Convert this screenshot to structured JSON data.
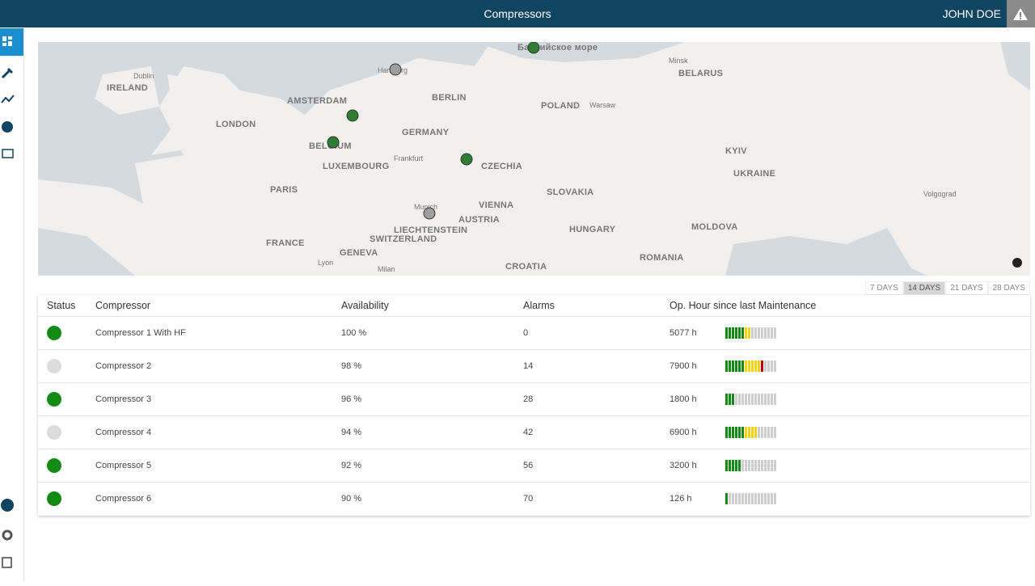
{
  "header": {
    "title": "Compressors",
    "user": "JOHN DOE"
  },
  "map": {
    "labels": [
      "IRELAND",
      "Dublin",
      "AMSTERDAM",
      "LONDON",
      "Hamburg",
      "BERLIN",
      "GERMANY",
      "BELGIUM",
      "LUXEMBOURG",
      "Frankfurt",
      "PARIS",
      "FRANCE",
      "CZECHIA",
      "Munich",
      "AUSTRIA",
      "VIENNA",
      "LIECHTENSTEIN",
      "SWITZERLAND",
      "GENEVA",
      "Lyon",
      "Milan",
      "CROATIA",
      "HUNGARY",
      "SLOVAKIA",
      "POLAND",
      "Warsaw",
      "Minsk",
      "BELARUS",
      "KYIV",
      "UKRAINE",
      "MOLDOVA",
      "ROMANIA",
      "Volgograd",
      "Балтийское море"
    ],
    "markers": [
      {
        "color": "#2e7d32"
      },
      {
        "color": "#9e9e9e"
      },
      {
        "color": "#2e7d32"
      },
      {
        "color": "#2e7d32"
      },
      {
        "color": "#2e7d32"
      },
      {
        "color": "#9e9e9e"
      }
    ]
  },
  "filters": [
    "7 DAYS",
    "14 DAYS",
    "21 DAYS",
    "28 DAYS"
  ],
  "active_filter": "14 DAYS",
  "table": {
    "headers": [
      "Status",
      "Compressor",
      "Availability",
      "Alarms",
      "Op. Hour since last Maintenance"
    ],
    "rows": [
      {
        "status_color": "#138a13",
        "name": "Compressor 1 With HF",
        "availability": "100 %",
        "alarms": "0",
        "hours": "5077 h",
        "bar": {
          "green": 6,
          "yellow": 2,
          "red": 0,
          "gray": 8
        }
      },
      {
        "status_color": "#dcdcdc",
        "name": "Compressor 2",
        "availability": "98 %",
        "alarms": "14",
        "hours": "7900 h",
        "bar": {
          "green": 6,
          "yellow": 5,
          "red": 1,
          "gray": 4
        }
      },
      {
        "status_color": "#138a13",
        "name": "Compressor 3",
        "availability": "96 %",
        "alarms": "28",
        "hours": "1800 h",
        "bar": {
          "green": 3,
          "yellow": 0,
          "red": 0,
          "gray": 13
        }
      },
      {
        "status_color": "#dcdcdc",
        "name": "Compressor 4",
        "availability": "94 %",
        "alarms": "42",
        "hours": "6900 h",
        "bar": {
          "green": 6,
          "yellow": 4,
          "red": 0,
          "gray": 6
        }
      },
      {
        "status_color": "#138a13",
        "name": "Compressor 5",
        "availability": "92 %",
        "alarms": "56",
        "hours": "3200 h",
        "bar": {
          "green": 5,
          "yellow": 0,
          "red": 0,
          "gray": 11
        }
      },
      {
        "status_color": "#138a13",
        "name": "Compressor 6",
        "availability": "90 %",
        "alarms": "70",
        "hours": "126 h",
        "bar": {
          "green": 1,
          "yellow": 0,
          "red": 0,
          "gray": 15
        }
      }
    ]
  }
}
